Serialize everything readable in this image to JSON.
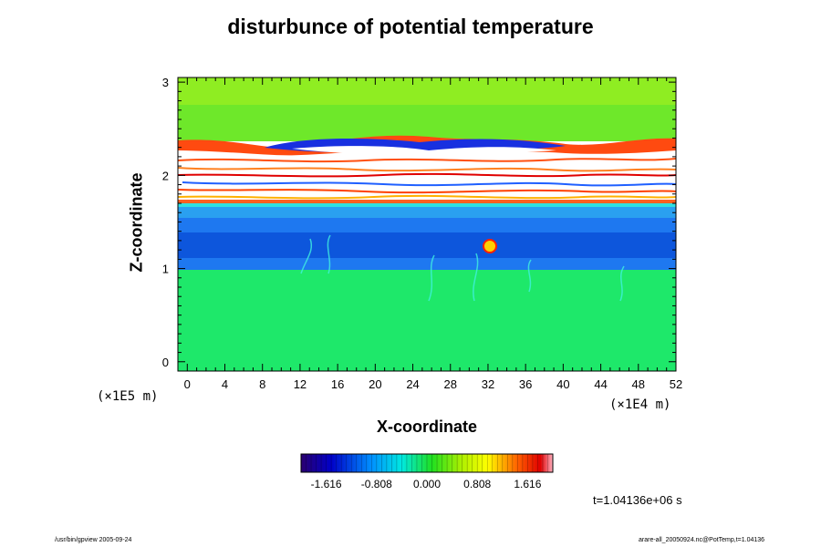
{
  "chart_data": {
    "type": "heatmap",
    "title": "disturbunce of potential temperature",
    "xlabel": "X-coordinate",
    "ylabel": "Z-coordinate",
    "x_unit": "(×1E4 m)",
    "y_unit": "(×1E5 m)",
    "xlim": [
      -1,
      52
    ],
    "ylim": [
      -0.1,
      3.05
    ],
    "x_ticks": [
      "0",
      "4",
      "8",
      "12",
      "16",
      "20",
      "24",
      "28",
      "32",
      "36",
      "40",
      "44",
      "48",
      "52"
    ],
    "y_ticks": [
      "0",
      "1",
      "2",
      "3"
    ],
    "colorbar": {
      "ticks": [
        "-1.616",
        "-0.808",
        "0.000",
        "0.808",
        "1.616"
      ],
      "range": [
        -2.02,
        2.02
      ]
    },
    "regions": [
      {
        "z": [
          -0.1,
          0.98
        ],
        "value": 0.2
      },
      {
        "z": [
          0.98,
          1.55
        ],
        "value": -0.85
      },
      {
        "z": [
          1.55,
          1.7
        ],
        "value": -0.6
      },
      {
        "z": [
          1.7,
          2.3
        ],
        "value": 2.5
      },
      {
        "z": [
          2.3,
          3.05
        ],
        "value": 0.35
      }
    ],
    "annotation": "t=1.04136e+06 s"
  },
  "footer": {
    "left": "/usr/bin/gpview 2005-09-24",
    "right": "arare-all_20050924.nc@PotTemp,t=1.04136"
  }
}
